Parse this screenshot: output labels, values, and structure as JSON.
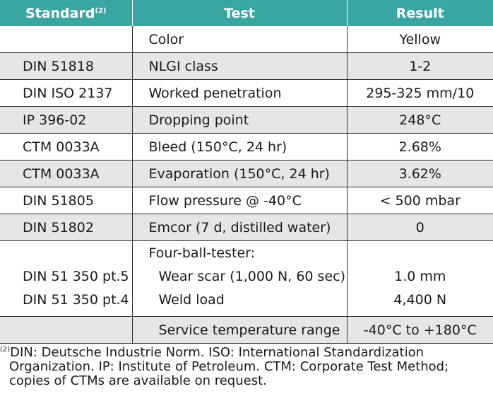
{
  "header": {
    "standard": "Standard",
    "standard_note": "(2)",
    "test": "Test",
    "result": "Result"
  },
  "rows": [
    {
      "standard": "",
      "test": "Color",
      "result": "Yellow"
    },
    {
      "standard": "DIN 51818",
      "test": "NLGI class",
      "result": "1-2"
    },
    {
      "standard": "DIN ISO 2137",
      "test": "Worked penetration",
      "result": "295-325 mm/10"
    },
    {
      "standard": "IP 396-02",
      "test": "Dropping point",
      "result": "248°C"
    },
    {
      "standard": "CTM 0033A",
      "test": "Bleed (150°C, 24 hr)",
      "result": "2.68%"
    },
    {
      "standard": "CTM 0033A",
      "test": "Evaporation (150°C, 24 hr)",
      "result": "3.62%"
    },
    {
      "standard": "DIN 51805",
      "test": "Flow pressure @ -40°C",
      "result": "< 500 mbar"
    },
    {
      "standard": "DIN 51802",
      "test": "Emcor (7 d, distilled water)",
      "result": "0"
    }
  ],
  "four_ball": {
    "heading": "Four-ball-tester:",
    "items": [
      {
        "standard": "DIN 51 350 pt.5",
        "test": "Wear scar (1,000 N, 60 sec)",
        "result": "1.0 mm"
      },
      {
        "standard": "DIN 51 350 pt.4",
        "test": "Weld load",
        "result": "4,400 N"
      }
    ]
  },
  "service": {
    "standard": "",
    "test": "Service temperature range",
    "result": "-40°C to +180°C"
  },
  "footnote": {
    "marker": "(2)",
    "line1": "DIN: Deutsche Industrie Norm. ISO: International Standardization",
    "line2": "Organization. IP: Institute of Petroleum. CTM: Corporate Test Method;",
    "line3": "copies of CTMs are available on request."
  },
  "colors": {
    "header_bg": "#3aa6a2",
    "shade_bg": "#e6e6e6",
    "rule": "#2e2e2e"
  }
}
